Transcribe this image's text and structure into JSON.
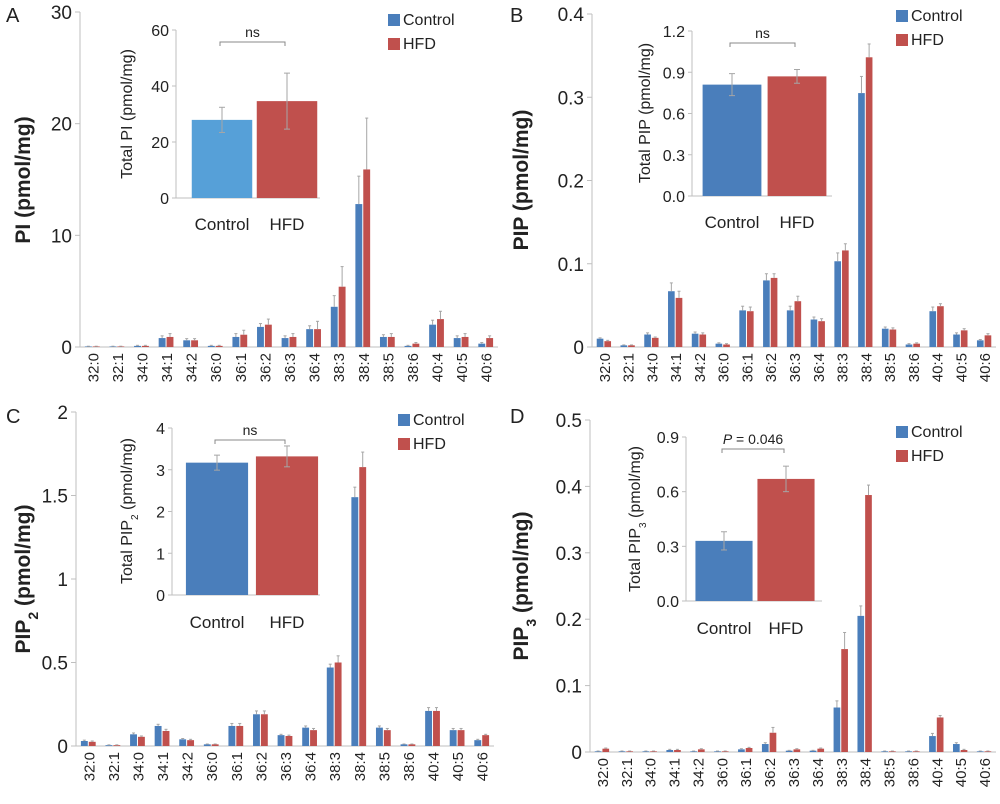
{
  "colors": {
    "control": "#4a7ebb",
    "hfd": "#c0504d",
    "control_inset_a": "#56a0d8",
    "axis": "#bfbfbf",
    "text": "#222222"
  },
  "categories": [
    "32:0",
    "32:1",
    "34:0",
    "34:1",
    "34:2",
    "36:0",
    "36:1",
    "36:2",
    "36:3",
    "36:4",
    "38:3",
    "38:4",
    "38:5",
    "38:6",
    "40:4",
    "40:5",
    "40:6"
  ],
  "legend": {
    "control": "Control",
    "hfd": "HFD"
  },
  "chart_data": [
    {
      "panel": "A",
      "type": "bar",
      "ylabel_main": "PI",
      "ylabel_sub": "",
      "ylabel_unit": " (pmol/mg)",
      "ylim": [
        0,
        30
      ],
      "yticks": [
        "0",
        "10",
        "20",
        "30"
      ],
      "ytick_values": [
        0,
        10,
        20,
        30
      ],
      "series": [
        {
          "name": "Control",
          "values": [
            0.05,
            0.05,
            0.1,
            0.8,
            0.6,
            0.1,
            0.9,
            1.8,
            0.8,
            1.6,
            3.6,
            12.8,
            0.9,
            0.1,
            2.0,
            0.8,
            0.3
          ],
          "errors": [
            0.02,
            0.02,
            0.05,
            0.2,
            0.15,
            0.05,
            0.3,
            0.3,
            0.2,
            0.3,
            1.0,
            2.5,
            0.2,
            0.05,
            0.4,
            0.2,
            0.1
          ]
        },
        {
          "name": "HFD",
          "values": [
            0.05,
            0.05,
            0.1,
            0.9,
            0.6,
            0.1,
            1.1,
            2.0,
            0.9,
            1.6,
            5.4,
            15.9,
            0.9,
            0.3,
            2.5,
            0.9,
            0.8
          ],
          "errors": [
            0.02,
            0.02,
            0.05,
            0.3,
            0.15,
            0.05,
            0.4,
            0.5,
            0.3,
            0.7,
            1.8,
            4.6,
            0.3,
            0.1,
            0.7,
            0.3,
            0.2
          ]
        }
      ],
      "inset": {
        "ylabel_main": "Total PI",
        "ylabel_sub": "",
        "ylabel_unit": " (pmol/mg)",
        "ylim": [
          0,
          60
        ],
        "yticks": [
          "0",
          "20",
          "40",
          "60"
        ],
        "ytick_values": [
          0,
          20,
          40,
          60
        ],
        "categories": [
          "Control",
          "HFD"
        ],
        "values": [
          27.9,
          34.6
        ],
        "errors": [
          4.5,
          10.0
        ],
        "annotation": "ns",
        "annotation_italic": "",
        "control_color_key": "control_inset_a"
      }
    },
    {
      "panel": "B",
      "type": "bar",
      "ylabel_main": "PIP",
      "ylabel_sub": "",
      "ylabel_unit": " (pmol/mg)",
      "ylim": [
        0,
        0.4
      ],
      "yticks": [
        "0",
        "0.1",
        "0.2",
        "0.3",
        "0.4"
      ],
      "ytick_values": [
        0,
        0.1,
        0.2,
        0.3,
        0.4
      ],
      "series": [
        {
          "name": "Control",
          "values": [
            0.01,
            0.002,
            0.015,
            0.067,
            0.016,
            0.004,
            0.044,
            0.08,
            0.044,
            0.033,
            0.103,
            0.305,
            0.022,
            0.003,
            0.043,
            0.015,
            0.008
          ],
          "errors": [
            0.001,
            0.0005,
            0.002,
            0.01,
            0.002,
            0.001,
            0.005,
            0.008,
            0.005,
            0.003,
            0.01,
            0.02,
            0.002,
            0.001,
            0.005,
            0.002,
            0.001
          ]
        },
        {
          "name": "HFD",
          "values": [
            0.007,
            0.002,
            0.011,
            0.059,
            0.015,
            0.003,
            0.043,
            0.083,
            0.055,
            0.031,
            0.116,
            0.348,
            0.021,
            0.004,
            0.049,
            0.02,
            0.014
          ],
          "errors": [
            0.001,
            0.0005,
            0.001,
            0.008,
            0.002,
            0.001,
            0.005,
            0.005,
            0.006,
            0.003,
            0.008,
            0.016,
            0.002,
            0.001,
            0.003,
            0.002,
            0.002
          ]
        }
      ],
      "inset": {
        "ylabel_main": "Total PIP",
        "ylabel_sub": "",
        "ylabel_unit": " (pmol/mg)",
        "ylim": [
          0,
          1.2
        ],
        "yticks": [
          "0.0",
          "0.3",
          "0.6",
          "0.9",
          "1.2"
        ],
        "ytick_values": [
          0,
          0.3,
          0.6,
          0.9,
          1.2
        ],
        "categories": [
          "Control",
          "HFD"
        ],
        "values": [
          0.81,
          0.87
        ],
        "errors": [
          0.08,
          0.05
        ],
        "annotation": "ns",
        "annotation_italic": "",
        "control_color_key": "control"
      }
    },
    {
      "panel": "C",
      "type": "bar",
      "ylabel_main": "PIP",
      "ylabel_sub": "2",
      "ylabel_unit": " (pmol/mg)",
      "ylim": [
        0,
        2
      ],
      "yticks": [
        "0",
        "0.5",
        "1",
        "1.5",
        "2"
      ],
      "ytick_values": [
        0,
        0.5,
        1,
        1.5,
        2
      ],
      "series": [
        {
          "name": "Control",
          "values": [
            0.03,
            0.005,
            0.07,
            0.12,
            0.04,
            0.01,
            0.12,
            0.19,
            0.065,
            0.11,
            0.47,
            1.49,
            0.11,
            0.01,
            0.21,
            0.095,
            0.035
          ],
          "errors": [
            0.005,
            0.002,
            0.008,
            0.01,
            0.005,
            0.002,
            0.015,
            0.02,
            0.005,
            0.01,
            0.02,
            0.06,
            0.01,
            0.002,
            0.02,
            0.01,
            0.005
          ]
        },
        {
          "name": "HFD",
          "values": [
            0.025,
            0.005,
            0.055,
            0.09,
            0.035,
            0.01,
            0.12,
            0.19,
            0.06,
            0.095,
            0.5,
            1.67,
            0.095,
            0.01,
            0.21,
            0.095,
            0.065
          ],
          "errors": [
            0.005,
            0.002,
            0.005,
            0.01,
            0.005,
            0.002,
            0.015,
            0.02,
            0.005,
            0.01,
            0.04,
            0.09,
            0.01,
            0.002,
            0.02,
            0.01,
            0.005
          ]
        }
      ],
      "inset": {
        "ylabel_main": "Total PIP",
        "ylabel_sub": "2",
        "ylabel_unit": " (pmol/mg)",
        "ylim": [
          0,
          4
        ],
        "yticks": [
          "0",
          "1",
          "2",
          "3",
          "4"
        ],
        "ytick_values": [
          0,
          1,
          2,
          3,
          4
        ],
        "categories": [
          "Control",
          "HFD"
        ],
        "values": [
          3.17,
          3.32
        ],
        "errors": [
          0.18,
          0.25
        ],
        "annotation": "ns",
        "annotation_italic": "",
        "control_color_key": "control"
      }
    },
    {
      "panel": "D",
      "type": "bar",
      "ylabel_main": "PIP",
      "ylabel_sub": "3",
      "ylabel_unit": " (pmol/mg)",
      "ylim": [
        0,
        0.5
      ],
      "yticks": [
        "0",
        "0.1",
        "0.2",
        "0.3",
        "0.4",
        "0.5"
      ],
      "ytick_values": [
        0,
        0.1,
        0.2,
        0.3,
        0.4,
        0.5
      ],
      "series": [
        {
          "name": "Control",
          "values": [
            0.001,
            0.001,
            0.001,
            0.003,
            0.001,
            0.001,
            0.004,
            0.012,
            0.002,
            0.002,
            0.067,
            0.205,
            0.001,
            0.001,
            0.024,
            0.012,
            0.001
          ],
          "errors": [
            0.0005,
            0.0005,
            0.0005,
            0.001,
            0.0005,
            0.0005,
            0.001,
            0.002,
            0.0005,
            0.0005,
            0.01,
            0.015,
            0.0005,
            0.0005,
            0.004,
            0.002,
            0.0005
          ]
        },
        {
          "name": "HFD",
          "values": [
            0.005,
            0.001,
            0.001,
            0.003,
            0.004,
            0.001,
            0.006,
            0.029,
            0.004,
            0.005,
            0.155,
            0.387,
            0.001,
            0.001,
            0.052,
            0.003,
            0.001
          ],
          "errors": [
            0.001,
            0.0005,
            0.0005,
            0.001,
            0.001,
            0.0005,
            0.001,
            0.008,
            0.001,
            0.001,
            0.025,
            0.015,
            0.0005,
            0.0005,
            0.003,
            0.001,
            0.0005
          ]
        }
      ],
      "inset": {
        "ylabel_main": "Total PIP",
        "ylabel_sub": "3",
        "ylabel_unit": " (pmol/mg)",
        "ylim": [
          0,
          0.9
        ],
        "yticks": [
          "0.0",
          "0.3",
          "0.6",
          "0.9"
        ],
        "ytick_values": [
          0,
          0.3,
          0.6,
          0.9
        ],
        "categories": [
          "Control",
          "HFD"
        ],
        "values": [
          0.33,
          0.67
        ],
        "errors": [
          0.05,
          0.07
        ],
        "annotation": " = 0.046",
        "annotation_italic": "P",
        "control_color_key": "control"
      }
    }
  ]
}
